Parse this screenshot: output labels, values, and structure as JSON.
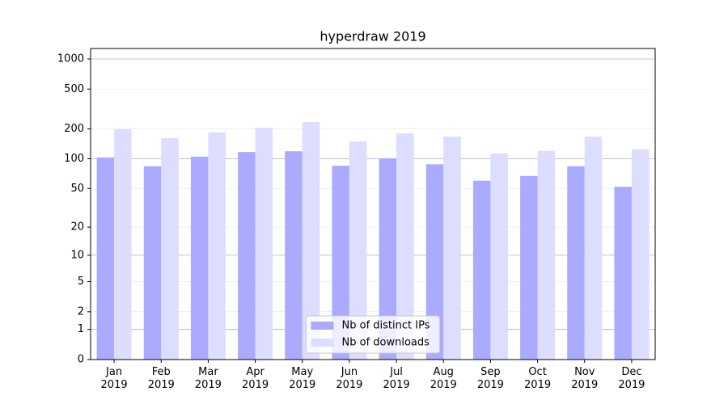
{
  "chart_data": {
    "type": "bar",
    "title": "hyperdraw 2019",
    "categories": [
      "Jan\n2019",
      "Feb\n2019",
      "Mar\n2019",
      "Apr\n2019",
      "May\n2019",
      "Jun\n2019",
      "Jul\n2019",
      "Aug\n2019",
      "Sep\n2019",
      "Oct\n2019",
      "Nov\n2019",
      "Dec\n2019"
    ],
    "series": [
      {
        "name": "Nb of distinct IPs",
        "color": "#aaaaff",
        "values": [
          103,
          84,
          105,
          117,
          119,
          85,
          101,
          88,
          60,
          67,
          84,
          52
        ]
      },
      {
        "name": "Nb of downloads",
        "color": "#ddddff",
        "values": [
          198,
          161,
          184,
          205,
          234,
          149,
          180,
          167,
          113,
          120,
          167,
          124
        ]
      }
    ],
    "yscale": "log1p",
    "ylim": [
      0,
      1273
    ],
    "yticks": [
      0,
      1,
      2,
      5,
      10,
      20,
      50,
      100,
      200,
      500,
      1000
    ],
    "grid": true,
    "legend": "lower center"
  }
}
